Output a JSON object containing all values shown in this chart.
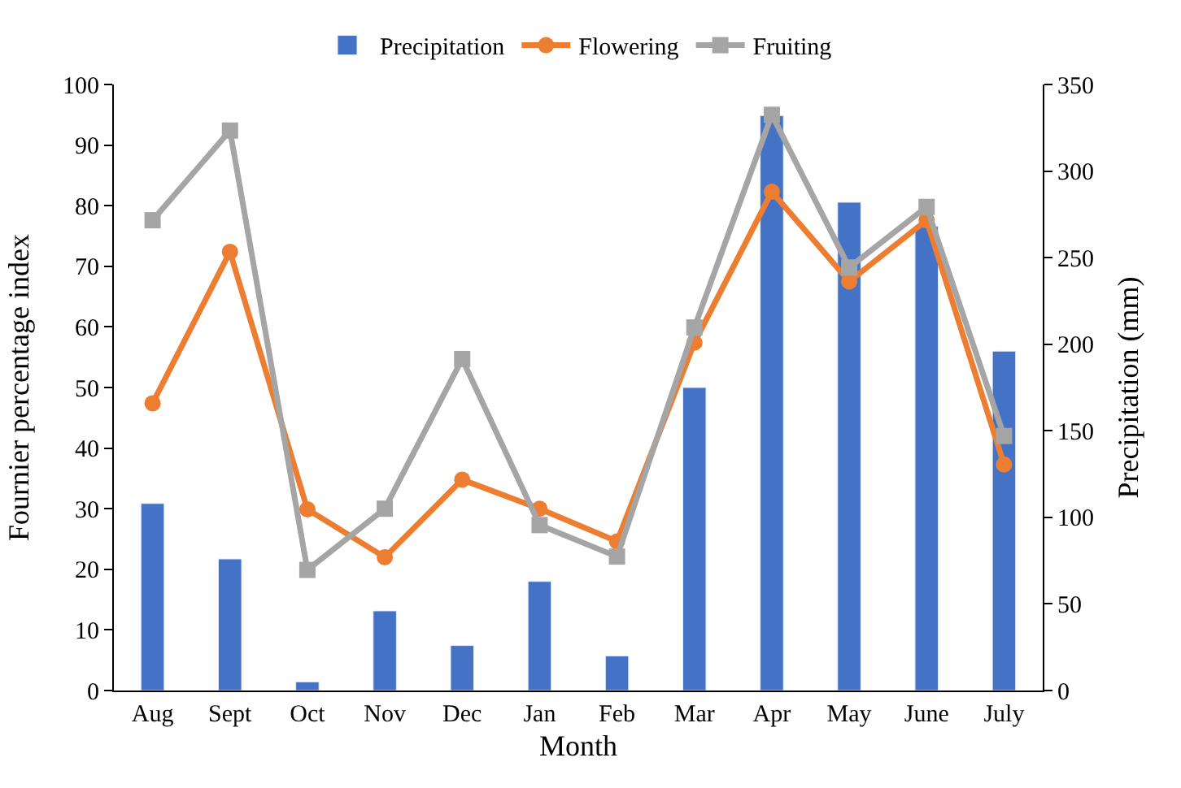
{
  "chart_data": {
    "type": "bar",
    "xlabel": "Month",
    "ylabel": "Fournier percentage index",
    "y2label": "Precipitation (mm)",
    "categories": [
      "Aug",
      "Sept",
      "Oct",
      "Nov",
      "Dec",
      "Jan",
      "Feb",
      "Mar",
      "Apr",
      "May",
      "June",
      "July"
    ],
    "series": [
      {
        "name": "Precipitation",
        "axis": "y2",
        "color": "#4472c4",
        "values": [
          108,
          76,
          5,
          46,
          26,
          63,
          20,
          175,
          332,
          282,
          268,
          196
        ]
      },
      {
        "name": "Flowering",
        "type": "line",
        "marker": "circle",
        "color": "#ed7d31",
        "values": [
          47.4,
          72.4,
          29.9,
          22.0,
          34.8,
          30.0,
          24.6,
          57.4,
          82.3,
          67.5,
          77.6,
          37.3
        ]
      },
      {
        "name": "Fruiting",
        "type": "line",
        "marker": "square",
        "color": "#a5a5a5",
        "values": [
          77.6,
          92.4,
          19.9,
          30.0,
          54.7,
          27.3,
          22.1,
          59.9,
          95.0,
          69.8,
          79.8,
          42.0
        ]
      }
    ],
    "ylim": [
      0,
      100
    ],
    "yticks": [
      0,
      10,
      20,
      30,
      40,
      50,
      60,
      70,
      80,
      90,
      100
    ],
    "y2lim": [
      0,
      350
    ],
    "y2ticks": [
      0,
      50,
      100,
      150,
      200,
      250,
      300,
      350
    ],
    "legend": "top"
  }
}
